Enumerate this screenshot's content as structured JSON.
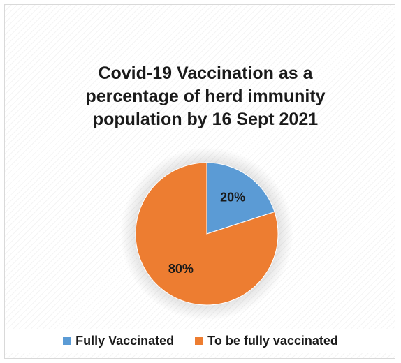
{
  "chart_data": {
    "type": "pie",
    "title": [
      "Covid-19 Vaccination as a",
      "percentage of herd immunity",
      "population by 16 Sept 2021"
    ],
    "slices": [
      {
        "label": "Fully Vaccinated",
        "value": 20,
        "display": "20%",
        "color": "#5b9bd5"
      },
      {
        "label": "To be fully vaccinated",
        "value": 80,
        "display": "80%",
        "color": "#ed7d31"
      }
    ],
    "legend_position": "bottom"
  }
}
